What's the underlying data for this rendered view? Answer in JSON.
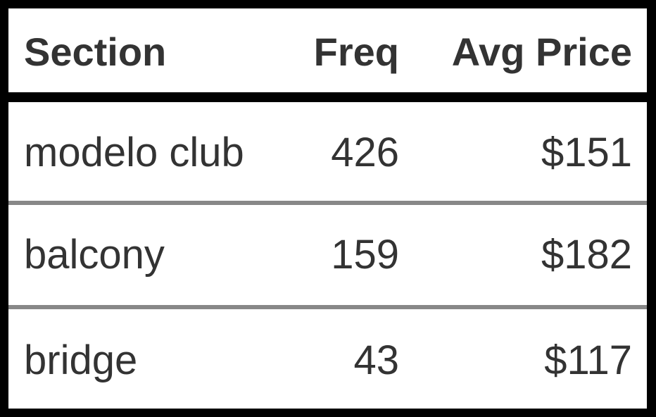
{
  "chart_data": {
    "type": "table",
    "columns": [
      "Section",
      "Freq",
      "Avg Price"
    ],
    "rows": [
      [
        "modelo club",
        "426",
        "$151"
      ],
      [
        "balcony",
        "159",
        "$182"
      ],
      [
        "bridge",
        "43",
        "$117"
      ]
    ]
  },
  "colors": {
    "background": "#000000",
    "panel": "#ffffff",
    "text": "#333333",
    "row_separator": "#888888"
  }
}
